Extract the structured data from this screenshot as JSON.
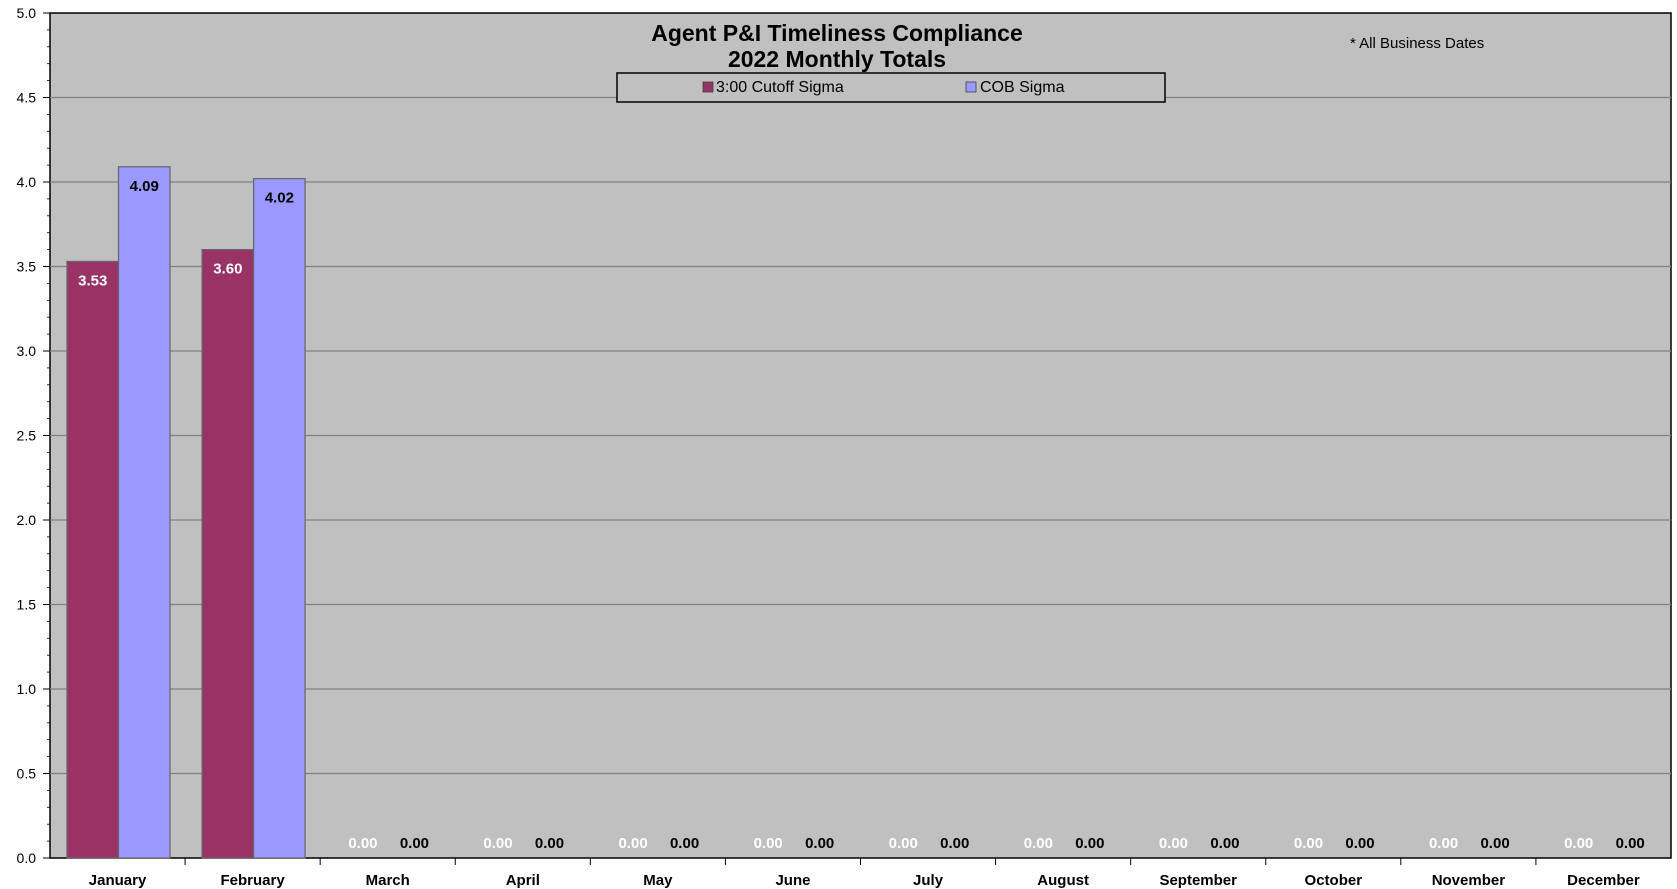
{
  "chart_data": {
    "type": "bar",
    "title": "Agent P&I Timeliness Compliance",
    "subtitle": "2022 Monthly Totals",
    "note": "* All Business Dates",
    "categories": [
      "January",
      "February",
      "March",
      "April",
      "May",
      "June",
      "July",
      "August",
      "September",
      "October",
      "November",
      "December"
    ],
    "series": [
      {
        "name": "3:00 Cutoff Sigma",
        "color": "#993366",
        "values": [
          3.53,
          3.6,
          0,
          0,
          0,
          0,
          0,
          0,
          0,
          0,
          0,
          0
        ],
        "labels": [
          "3.53",
          "3.60",
          "0.00",
          "0.00",
          "0.00",
          "0.00",
          "0.00",
          "0.00",
          "0.00",
          "0.00",
          "0.00",
          "0.00"
        ]
      },
      {
        "name": "COB Sigma",
        "color": "#9999ff",
        "values": [
          4.09,
          4.02,
          0,
          0,
          0,
          0,
          0,
          0,
          0,
          0,
          0,
          0
        ],
        "labels": [
          "4.09",
          "4.02",
          "0.00",
          "0.00",
          "0.00",
          "0.00",
          "0.00",
          "0.00",
          "0.00",
          "0.00",
          "0.00",
          "0.00"
        ]
      }
    ],
    "ylim": [
      0,
      5
    ],
    "yticks": [
      "0.0",
      "0.5",
      "1.0",
      "1.5",
      "2.0",
      "2.5",
      "3.0",
      "3.5",
      "4.0",
      "4.5",
      "5.0"
    ],
    "grid": true,
    "legend_position": "top-center",
    "plot_background": "#c0c0c0"
  }
}
